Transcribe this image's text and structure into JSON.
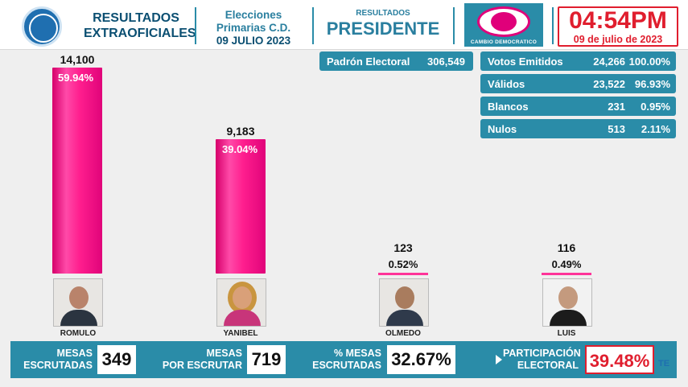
{
  "header": {
    "title_line1": "RESULTADOS",
    "title_line2": "EXTRAOFICIALES",
    "event_line1": "Elecciones",
    "event_line2": "Primarias C.D.",
    "event_line3": "09 JULIO 2023",
    "results_small": "RESULTADOS",
    "results_big": "PRESIDENTE",
    "party_name": "CAMBIO DEMOCRATICO",
    "time": "04:54PM",
    "date": "09 de julio de 2023"
  },
  "stats": {
    "padron": {
      "label": "Padrón Electoral",
      "value": "306,549"
    },
    "rows": [
      {
        "label": "Votos Emitidos",
        "value": "24,266",
        "pct": "100.00%"
      },
      {
        "label": "Válidos",
        "value": "23,522",
        "pct": "96.93%"
      },
      {
        "label": "Blancos",
        "value": "231",
        "pct": "0.95%"
      },
      {
        "label": "Nulos",
        "value": "513",
        "pct": "2.11%"
      }
    ]
  },
  "candidates": [
    {
      "name": "ROMULO",
      "votes": "14,100",
      "pct": "59.94%",
      "share": 59.94
    },
    {
      "name": "YANIBEL",
      "votes": "9,183",
      "pct": "39.04%",
      "share": 39.04
    },
    {
      "name": "OLMEDO",
      "votes": "123",
      "pct": "0.52%",
      "share": 0.52
    },
    {
      "name": "LUIS",
      "votes": "116",
      "pct": "0.49%",
      "share": 0.49
    }
  ],
  "footer": {
    "mesas_escrutadas_l1": "MESAS",
    "mesas_escrutadas_l2": "ESCRUTADAS",
    "mesas_escrutadas": "349",
    "mesas_por_escrutar_l1": "MESAS",
    "mesas_por_escrutar_l2": "POR ESCRUTAR",
    "mesas_por_escrutar": "719",
    "pct_mesas_l1": "% MESAS",
    "pct_mesas_l2": "ESCRUTADAS",
    "pct_mesas": "32.67%",
    "participacion_l1": "PARTICIPACIÓN",
    "participacion_l2": "ELECTORAL",
    "participacion": "39.48%"
  },
  "watermark": "TE",
  "colors": {
    "accent": "#2a8ca8",
    "bar": "#ff1e8e",
    "alert": "#e01e2e"
  }
}
